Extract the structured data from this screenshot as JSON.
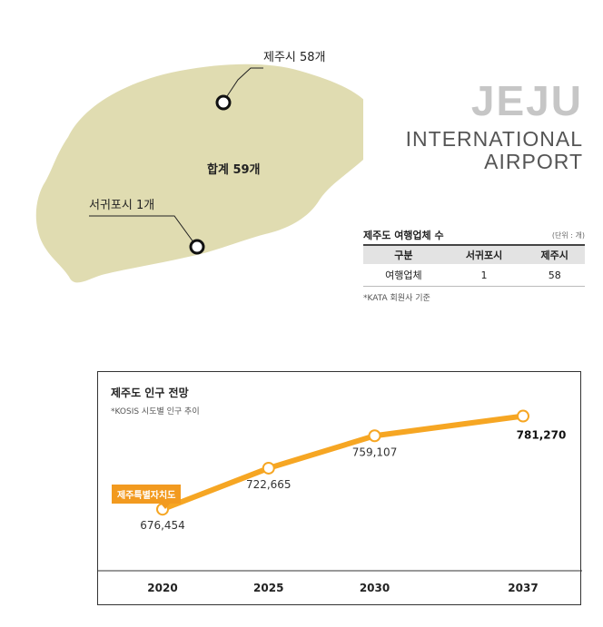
{
  "map": {
    "jeju_city_label": "제주시 58개",
    "seogwipo_label": "서귀포시 1개",
    "total_label": "합계 59개",
    "land_color": "#e0dcb1"
  },
  "brand": {
    "line1": "JEJU",
    "line2": "INTERNATIONAL",
    "line3": "AIRPORT"
  },
  "agency_table": {
    "title": "제주도 여행업체 수",
    "unit": "(단위 : 개)",
    "headers": [
      "구분",
      "서귀포시",
      "제주시"
    ],
    "row": [
      "여행업체",
      "1",
      "58"
    ],
    "note": "*KATA 회원사 기준"
  },
  "chart": {
    "title": "제주도 인구 전망",
    "note": "*KOSIS 시도별 인구 추이",
    "badge": "제주특별자치도",
    "line_color": "#f6a623"
  },
  "chart_data": {
    "type": "line",
    "categories": [
      "2020",
      "2025",
      "2030",
      "2037"
    ],
    "series": [
      {
        "values": [
          676454,
          722665,
          759107,
          781270
        ]
      }
    ],
    "data_labels": [
      "676,454",
      "722,665",
      "759,107",
      "781,270"
    ],
    "title": "제주도 인구 전망",
    "xlabel": "",
    "ylabel": "",
    "grid": false
  }
}
